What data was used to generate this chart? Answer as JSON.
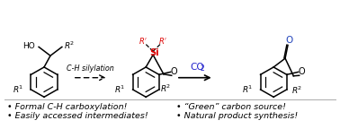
{
  "background_color": "#ffffff",
  "bullet_left_1": "• Formal C-H carboxylation!",
  "bullet_left_2": "• Easily accessed intermediates!",
  "bullet_right_1": "• “Green” carbon source!",
  "bullet_right_2": "• Natural product synthesis!",
  "arrow1_label": "C-H silylation",
  "arrow2_label": "CO",
  "arrow2_sub": "2",
  "arrow2_color": "#2222cc",
  "si_color": "#dd0000",
  "bullet_fontsize": 6.8,
  "figsize": [
    3.78,
    1.44
  ],
  "dpi": 100
}
